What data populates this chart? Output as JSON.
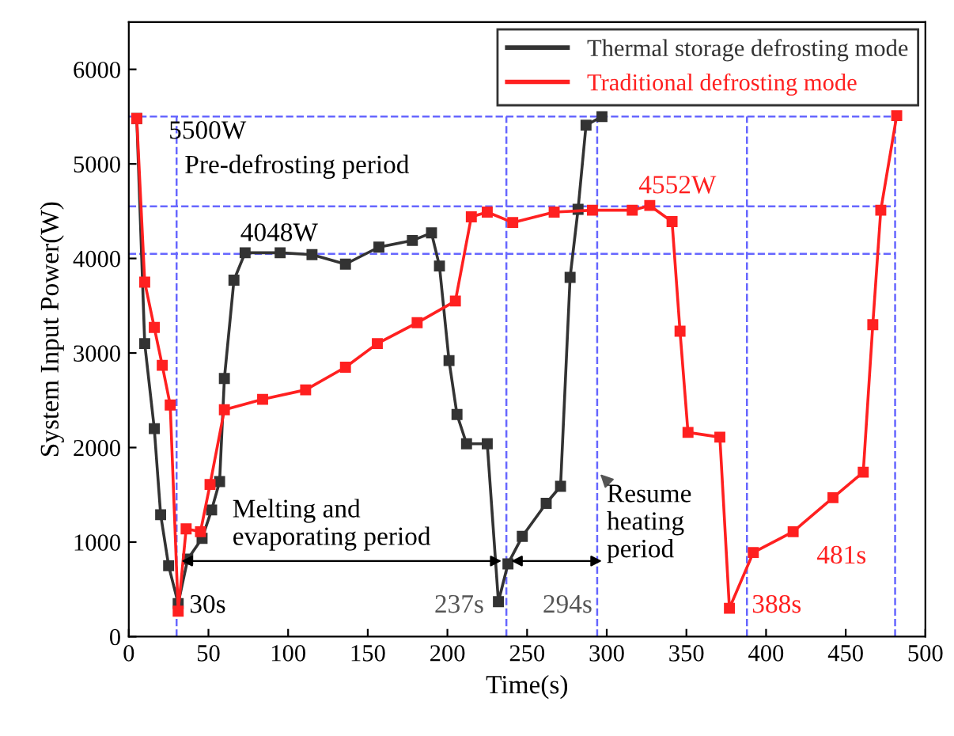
{
  "chart_data": {
    "type": "line",
    "xlabel": "Time(s)",
    "ylabel": "System Input Power(W)",
    "xlim": [
      0,
      500
    ],
    "xticks": [
      0,
      50,
      100,
      150,
      200,
      250,
      300,
      350,
      400,
      450,
      500
    ],
    "ylim": [
      0,
      6500
    ],
    "yticks": [
      0,
      1000,
      2000,
      3000,
      4000,
      5000,
      6000
    ],
    "legend": "top right",
    "marker": "square",
    "line_style": "solid",
    "grid": false,
    "series": [
      {
        "name": "Thermal storage defrosting mode",
        "color": "#333333",
        "x": [
          5,
          10,
          16,
          20,
          25,
          31,
          37,
          46,
          52,
          57,
          60,
          66,
          73,
          95,
          115,
          136,
          157,
          178,
          190,
          195,
          201,
          206,
          212,
          225,
          232,
          238,
          247,
          262,
          271,
          277,
          282,
          287,
          297
        ],
        "values": [
          5480,
          3100,
          2200,
          1290,
          750,
          350,
          820,
          1040,
          1340,
          1640,
          2730,
          3770,
          4060,
          4060,
          4040,
          3940,
          4120,
          4190,
          4270,
          3920,
          2920,
          2350,
          2040,
          2040,
          370,
          770,
          1060,
          1410,
          1590,
          3800,
          4520,
          5410,
          5500
        ]
      },
      {
        "name": "Traditional defrosting mode",
        "color": "#ff2020",
        "x": [
          5,
          10,
          16,
          21,
          26,
          31,
          36,
          45,
          51,
          60,
          84,
          111,
          136,
          156,
          181,
          205,
          215,
          225,
          241,
          267,
          291,
          316,
          327,
          341,
          346,
          351,
          371,
          377,
          392,
          417,
          442,
          461,
          467,
          472,
          482
        ],
        "values": [
          5480,
          3750,
          3270,
          2870,
          2450,
          270,
          1140,
          1110,
          1610,
          2400,
          2510,
          2610,
          2850,
          3100,
          3320,
          3550,
          4440,
          4490,
          4380,
          4490,
          4510,
          4510,
          4560,
          4390,
          3230,
          2160,
          2110,
          300,
          890,
          1110,
          1470,
          1740,
          3300,
          4510,
          5510
        ]
      }
    ],
    "ref_lines": [
      {
        "axis": "y",
        "value": 5500,
        "label": "5500W",
        "color": "#6666ff",
        "line_style": "dashed"
      },
      {
        "axis": "y",
        "value": 4552,
        "label": "4552W",
        "color": "#6666ff",
        "line_style": "dashed"
      },
      {
        "axis": "y",
        "value": 4048,
        "label": "4048W",
        "color": "#6666ff",
        "line_style": "dashed"
      },
      {
        "axis": "x",
        "value": 30,
        "label": "30s",
        "color": "#6666ff",
        "line_style": "dashed"
      },
      {
        "axis": "x",
        "value": 237,
        "label": "237s",
        "color": "#6666ff",
        "line_style": "dashed"
      },
      {
        "axis": "x",
        "value": 294,
        "label": "294s",
        "color": "#6666ff",
        "line_style": "dashed"
      },
      {
        "axis": "x",
        "value": 388,
        "label": "388s",
        "color": "#6666ff",
        "line_style": "dashed"
      },
      {
        "axis": "x",
        "value": 481,
        "label": "481s",
        "color": "#6666ff",
        "line_style": "dashed"
      }
    ],
    "annotations": [
      "Pre-defrosting period",
      "Melting and\nevaporating period",
      {
        "text": "Resume\nheating\nperiod",
        "x": 294,
        "y": 1750
      }
    ]
  }
}
